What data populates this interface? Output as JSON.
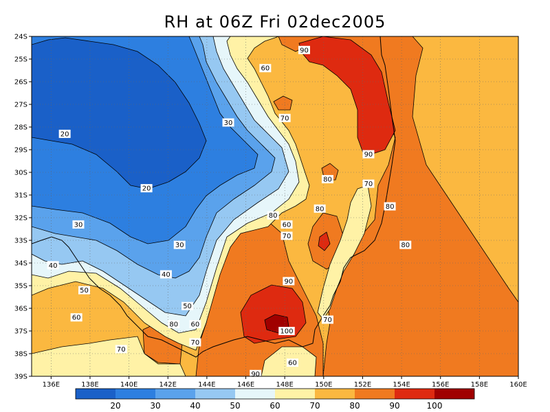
{
  "title": "RH at 06Z Fri 02dec2005",
  "chart_data": {
    "type": "contour-map",
    "variable": "RH",
    "lon_range": [
      135,
      160
    ],
    "lat_range": [
      -39,
      -24
    ],
    "x_ticks": [
      "136E",
      "138E",
      "140E",
      "142E",
      "144E",
      "146E",
      "148E",
      "150E",
      "152E",
      "154E",
      "156E",
      "158E",
      "160E"
    ],
    "y_ticks": [
      "24S",
      "25S",
      "26S",
      "27S",
      "28S",
      "29S",
      "30S",
      "31S",
      "32S",
      "33S",
      "34S",
      "35S",
      "36S",
      "37S",
      "38S",
      "39S"
    ],
    "grid": "dotted",
    "contour_labels": [
      {
        "text": "90",
        "lon": 149.0,
        "lat": -24.6
      },
      {
        "text": "60",
        "lon": 147.0,
        "lat": -25.4
      },
      {
        "text": "70",
        "lon": 148.0,
        "lat": -27.6
      },
      {
        "text": "30",
        "lon": 145.1,
        "lat": -27.8
      },
      {
        "text": "20",
        "lon": 136.7,
        "lat": -28.3
      },
      {
        "text": "90",
        "lon": 152.3,
        "lat": -29.2
      },
      {
        "text": "80",
        "lon": 150.2,
        "lat": -30.3
      },
      {
        "text": "70",
        "lon": 152.3,
        "lat": -30.5
      },
      {
        "text": "20",
        "lon": 140.9,
        "lat": -30.7
      },
      {
        "text": "80",
        "lon": 153.4,
        "lat": -31.5
      },
      {
        "text": "80",
        "lon": 149.8,
        "lat": -31.6
      },
      {
        "text": "80",
        "lon": 147.4,
        "lat": -31.9
      },
      {
        "text": "60",
        "lon": 148.1,
        "lat": -32.3
      },
      {
        "text": "30",
        "lon": 137.4,
        "lat": -32.3
      },
      {
        "text": "70",
        "lon": 148.1,
        "lat": -32.8
      },
      {
        "text": "80",
        "lon": 154.2,
        "lat": -33.2
      },
      {
        "text": "30",
        "lon": 142.6,
        "lat": -33.2
      },
      {
        "text": "40",
        "lon": 136.1,
        "lat": -34.1
      },
      {
        "text": "40",
        "lon": 141.9,
        "lat": -34.5
      },
      {
        "text": "90",
        "lon": 148.2,
        "lat": -34.8
      },
      {
        "text": "50",
        "lon": 137.7,
        "lat": -35.2
      },
      {
        "text": "50",
        "lon": 143.0,
        "lat": -35.9
      },
      {
        "text": "60",
        "lon": 137.3,
        "lat": -36.4
      },
      {
        "text": "70",
        "lon": 150.2,
        "lat": -36.5
      },
      {
        "text": "60",
        "lon": 143.4,
        "lat": -36.7
      },
      {
        "text": "80",
        "lon": 142.3,
        "lat": -36.7
      },
      {
        "text": "100",
        "lon": 148.1,
        "lat": -37.0
      },
      {
        "text": "70",
        "lon": 143.4,
        "lat": -37.5
      },
      {
        "text": "70",
        "lon": 139.6,
        "lat": -37.8
      },
      {
        "text": "60",
        "lon": 148.4,
        "lat": -38.4
      },
      {
        "text": "90",
        "lon": 146.5,
        "lat": -38.9
      }
    ],
    "colorbar": {
      "labels": [
        "20",
        "30",
        "40",
        "50",
        "60",
        "70",
        "80",
        "90",
        "100"
      ],
      "colors": [
        "#1a60c8",
        "#2d7fe0",
        "#5aa2ec",
        "#96c8f2",
        "#e6f6fa",
        "#fff2a6",
        "#fbb840",
        "#f07a20",
        "#de2a10",
        "#a00000"
      ]
    },
    "palette": {
      "rh10_20": "#1a60c8",
      "rh20_30": "#2d7fe0",
      "rh30_40": "#5aa2ec",
      "rh40_50": "#96c8f2",
      "rh50_60": "#e6f6fa",
      "rh60_70": "#fff2a6",
      "rh70_80": "#fbb840",
      "rh80_90": "#f07a20",
      "rh90_100": "#de2a10",
      "rh100": "#a00000"
    }
  }
}
